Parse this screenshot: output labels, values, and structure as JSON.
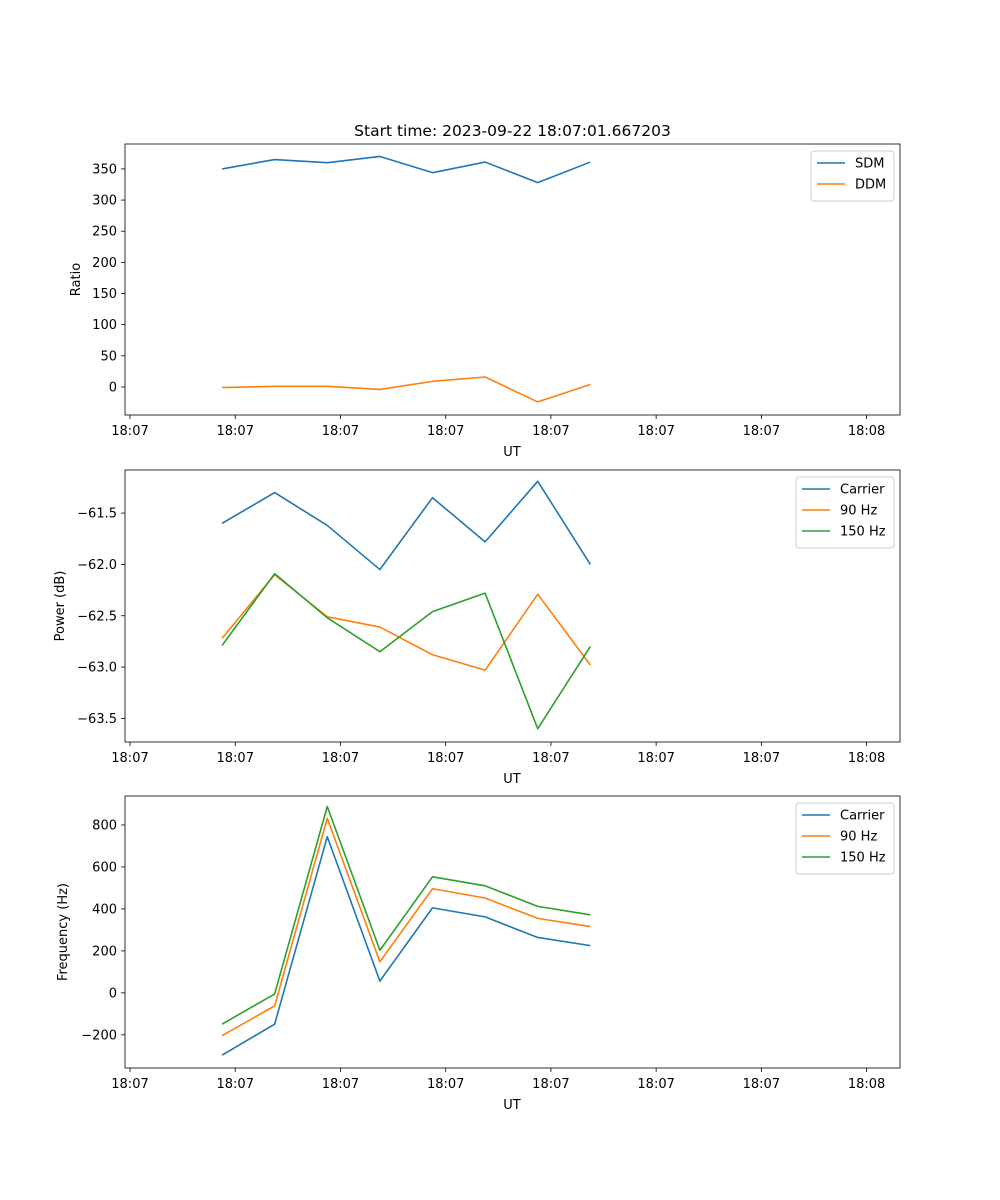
{
  "chart_data": [
    {
      "type": "line",
      "title": "Start time: 2023-09-22 18:07:01.667203",
      "xlabel": "UT",
      "ylabel": "Ratio",
      "x_tick_labels": [
        "18:07",
        "18:07",
        "18:07",
        "18:07",
        "18:07",
        "18:07",
        "18:07"
      ],
      "x_tick_last_label": "18:08",
      "x": [
        0.5,
        1.0,
        1.5,
        2.0,
        2.5,
        3.0,
        3.5,
        4.0
      ],
      "xlim": [
        -0.11,
        4.53
      ],
      "yticks": [
        0,
        50,
        100,
        150,
        200,
        250,
        300,
        350
      ],
      "ylim": [
        -45,
        390
      ],
      "legend_position": "upper right",
      "series": [
        {
          "name": "SDM",
          "color": "#1f77b4",
          "values": [
            350,
            365,
            360,
            370,
            344,
            361,
            328,
            361
          ]
        },
        {
          "name": "DDM",
          "color": "#ff7f0e",
          "values": [
            -1,
            1,
            1,
            -4,
            9,
            16,
            -24,
            4
          ]
        }
      ]
    },
    {
      "type": "line",
      "title": "",
      "xlabel": "UT",
      "ylabel": "Power (dB)",
      "x_tick_labels": [
        "18:07",
        "18:07",
        "18:07",
        "18:07",
        "18:07",
        "18:07",
        "18:07"
      ],
      "x_tick_last_label": "18:08",
      "x": [
        0.5,
        1.0,
        1.5,
        2.0,
        2.5,
        3.0,
        3.5,
        4.0
      ],
      "xlim": [
        -0.11,
        4.53
      ],
      "yticks": [
        -63.5,
        -63.0,
        -62.5,
        -62.0,
        -61.5
      ],
      "ytick_labels": [
        "−63.5",
        "−63.0",
        "−62.5",
        "−62.0",
        "−61.5"
      ],
      "ylim": [
        -63.73,
        -61.08
      ],
      "legend_position": "upper right",
      "series": [
        {
          "name": "Carrier",
          "color": "#1f77b4",
          "values": [
            -61.6,
            -61.3,
            -61.62,
            -62.05,
            -61.35,
            -61.78,
            -61.19,
            -62.0
          ]
        },
        {
          "name": "90 Hz",
          "color": "#ff7f0e",
          "values": [
            -62.72,
            -62.1,
            -62.51,
            -62.61,
            -62.88,
            -63.03,
            -62.29,
            -62.98
          ]
        },
        {
          "name": "150 Hz",
          "color": "#2ca02c",
          "values": [
            -62.79,
            -62.09,
            -62.52,
            -62.85,
            -62.46,
            -62.28,
            -63.6,
            -62.8
          ]
        }
      ]
    },
    {
      "type": "line",
      "title": "",
      "xlabel": "UT",
      "ylabel": "Frequency (Hz)",
      "x_tick_labels": [
        "18:07",
        "18:07",
        "18:07",
        "18:07",
        "18:07",
        "18:07",
        "18:07"
      ],
      "x_tick_last_label": "18:08",
      "x": [
        0.5,
        1.0,
        1.5,
        2.0,
        2.5,
        3.0,
        3.5,
        4.0
      ],
      "xlim": [
        -0.11,
        4.53
      ],
      "yticks": [
        -200,
        0,
        200,
        400,
        600,
        800
      ],
      "ytick_labels": [
        "−200",
        "0",
        "200",
        "400",
        "600",
        "800"
      ],
      "ylim": [
        -358,
        938
      ],
      "legend_position": "upper right",
      "series": [
        {
          "name": "Carrier",
          "color": "#1f77b4",
          "values": [
            -297,
            -149,
            744,
            56,
            405,
            362,
            264,
            225
          ]
        },
        {
          "name": "90 Hz",
          "color": "#ff7f0e",
          "values": [
            -204,
            -62,
            832,
            148,
            496,
            452,
            355,
            316
          ]
        },
        {
          "name": "150 Hz",
          "color": "#2ca02c",
          "values": [
            -149,
            -5,
            888,
            203,
            553,
            510,
            412,
            372
          ]
        }
      ]
    }
  ]
}
